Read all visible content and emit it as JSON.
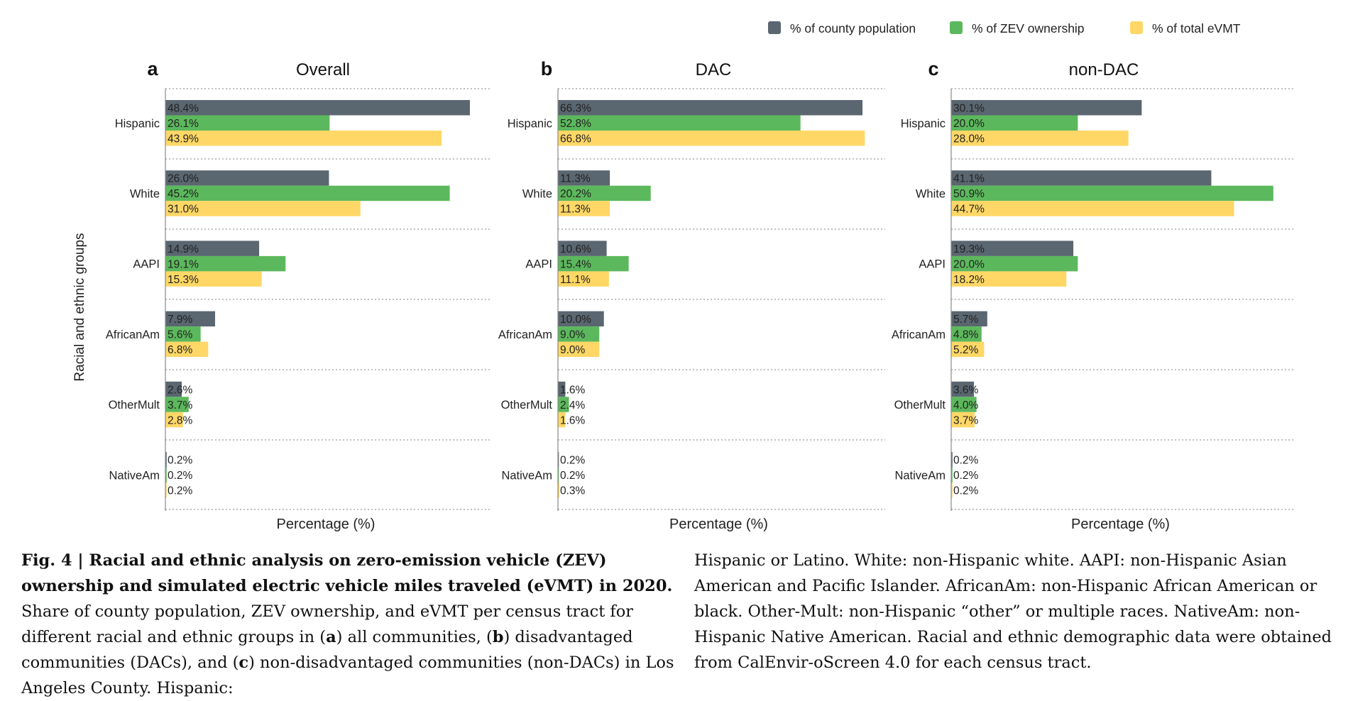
{
  "legend": [
    {
      "label": "% of county population",
      "color": "#5a6670"
    },
    {
      "label": "% of ZEV ownership",
      "color": "#5cb85c"
    },
    {
      "label": "% of total eVMT",
      "color": "#fed766"
    }
  ],
  "y_axis_title": "Racial and ethnic groups",
  "chart_data": [
    {
      "type": "bar",
      "orientation": "horizontal",
      "panel_letter": "a",
      "title": "Overall",
      "xlabel": "Percentage (%)",
      "categories": [
        "Hispanic",
        "White",
        "AAPI",
        "AfricanAm",
        "OtherMult",
        "NativeAm"
      ],
      "series": [
        {
          "name": "% of county population",
          "values": [
            48.4,
            26.0,
            14.9,
            7.9,
            2.6,
            0.2
          ],
          "labels": [
            "48.4%",
            "26.0%",
            "14.9%",
            "7.9%",
            "2.6%",
            "0.2%"
          ]
        },
        {
          "name": "% of ZEV ownership",
          "values": [
            26.1,
            45.2,
            19.1,
            5.6,
            3.7,
            0.2
          ],
          "labels": [
            "26.1%",
            "45.2%",
            "19.1%",
            "5.6%",
            "3.7%",
            "0.2%"
          ]
        },
        {
          "name": "% of total eVMT",
          "values": [
            43.9,
            31.0,
            15.3,
            6.8,
            2.8,
            0.2
          ],
          "labels": [
            "43.9%",
            "31.0%",
            "15.3%",
            "6.8%",
            "2.8%",
            "0.2%"
          ]
        }
      ],
      "xlim": [
        0,
        51
      ],
      "grid": "horizontal dotted separators"
    },
    {
      "type": "bar",
      "orientation": "horizontal",
      "panel_letter": "b",
      "title": "DAC",
      "xlabel": "Percentage (%)",
      "categories": [
        "Hispanic",
        "White",
        "AAPI",
        "AfricanAm",
        "OtherMult",
        "NativeAm"
      ],
      "series": [
        {
          "name": "% of county population",
          "values": [
            66.3,
            11.3,
            10.6,
            10.0,
            1.6,
            0.2
          ],
          "labels": [
            "66.3%",
            "11.3%",
            "10.6%",
            "10.0%",
            "1.6%",
            "0.2%"
          ]
        },
        {
          "name": "% of ZEV ownership",
          "values": [
            52.8,
            20.2,
            15.4,
            9.0,
            2.4,
            0.2
          ],
          "labels": [
            "52.8%",
            "20.2%",
            "15.4%",
            "9.0%",
            "2.4%",
            "0.2%"
          ]
        },
        {
          "name": "% of total eVMT",
          "values": [
            66.8,
            11.3,
            11.1,
            9.0,
            1.6,
            0.3
          ],
          "labels": [
            "66.8%",
            "11.3%",
            "11.1%",
            "9.0%",
            "1.6%",
            "0.3%"
          ]
        }
      ],
      "xlim": [
        0,
        70
      ],
      "grid": "horizontal dotted separators"
    },
    {
      "type": "bar",
      "orientation": "horizontal",
      "panel_letter": "c",
      "title": "non-DAC",
      "xlabel": "Percentage (%)",
      "categories": [
        "Hispanic",
        "White",
        "AAPI",
        "AfricanAm",
        "OtherMult",
        "NativeAm"
      ],
      "series": [
        {
          "name": "% of county population",
          "values": [
            30.1,
            41.1,
            19.3,
            5.7,
            3.6,
            0.2
          ],
          "labels": [
            "30.1%",
            "41.1%",
            "19.3%",
            "5.7%",
            "3.6%",
            "0.2%"
          ]
        },
        {
          "name": "% of ZEV ownership",
          "values": [
            20.0,
            50.9,
            20.0,
            4.8,
            4.0,
            0.2
          ],
          "labels": [
            "20.0%",
            "50.9%",
            "20.0%",
            "4.8%",
            "4.0%",
            "0.2%"
          ]
        },
        {
          "name": "% of total eVMT",
          "values": [
            28.0,
            44.7,
            18.2,
            5.2,
            3.7,
            0.2
          ],
          "labels": [
            "28.0%",
            "44.7%",
            "18.2%",
            "5.2%",
            "3.7%",
            "0.2%"
          ]
        }
      ],
      "xlim": [
        0,
        53.5
      ],
      "grid": "horizontal dotted separators"
    }
  ],
  "caption": {
    "figure_label": "Fig. 4 | ",
    "title": "Racial and ethnic analysis on zero-emission vehicle (ZEV) ownership and simulated electric vehicle miles traveled (eVMT) in 2020.",
    "left_text_1": " Share of county population, ZEV ownership, and eVMT per census tract for different racial and ethnic groups in (",
    "a": "a",
    "left_text_2": ") all communities, (",
    "b": "b",
    "left_text_3": ") disadvantaged communities (DACs), and (",
    "c": "c",
    "left_text_4": ") non-disadvantaged communities (non-DACs) in Los Angeles County. Hispanic:",
    "right_text": "Hispanic or Latino. White: non-Hispanic white. AAPI: non-Hispanic Asian American and Pacific Islander. AfricanAm: non-Hispanic African American or black. Other-Mult: non-Hispanic “other” or multiple races. NativeAm: non-Hispanic Native American. Racial and ethnic demographic data were obtained from CalEnvir-oScreen 4.0 for each census tract."
  }
}
